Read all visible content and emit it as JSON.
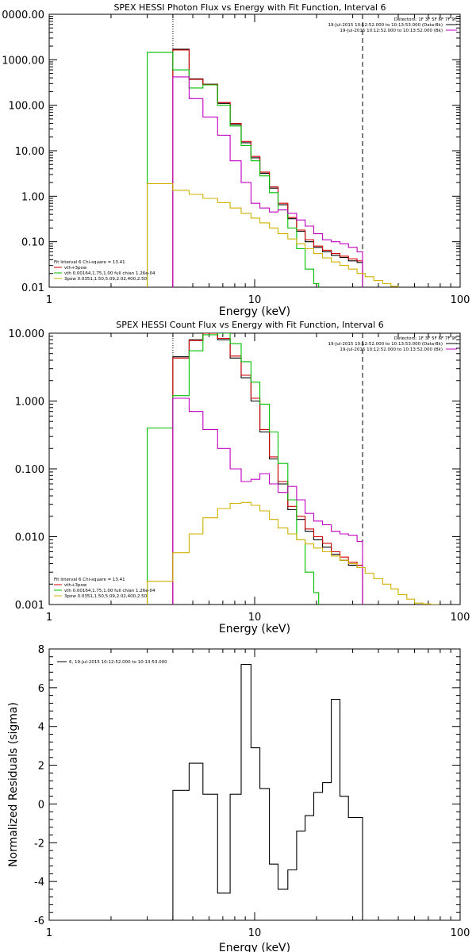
{
  "chart_data": [
    {
      "type": "line",
      "title": "SPEX HESSI Photon Flux vs Energy with Fit Function, Interval 6",
      "xlabel": "Energy (keV)",
      "ylabel": "",
      "xscale": "log",
      "yscale": "log",
      "xlim": [
        1,
        100
      ],
      "ylim": [
        0.01,
        10000
      ],
      "xtick_labels": [
        "1",
        "10",
        "100"
      ],
      "ytick_labels": [
        "0.01",
        "0.10",
        "1.00",
        "10.00",
        "100.00",
        "1000.00",
        "0000.00"
      ],
      "vlines": [
        {
          "x": 4.0,
          "style": "dotted"
        },
        {
          "x": 33.5,
          "style": "dashed"
        }
      ],
      "legend_right": {
        "header": "Detectors: 1F 3F 5F 6F 7F 9F",
        "lines": [
          {
            "text": "19-Jul-2015 10:12:52.000 to 10:13:53.000 (Data-Bk)",
            "color": "#000000"
          },
          {
            "text": "19-Jul-2015 10:12:52.000 to 10:13:52.000 (Bk)",
            "color": "#c000c0"
          }
        ]
      },
      "legend_left": {
        "header": "Fit Interval 6   Chi-square = 13.41",
        "lines": [
          {
            "text": "vth+3pow",
            "color": "#d00000"
          },
          {
            "text": "vth 0.00164,1.75,1.00  full chian 1.26e-04",
            "color": "#00c000"
          },
          {
            "text": "3pow 0.0351,1.50,5.09,2.02,400,2.50",
            "color": "#d0b000"
          }
        ]
      },
      "series": [
        {
          "color": "#000000",
          "edges": [
            4.0,
            4.8,
            5.6,
            6.6,
            7.6,
            8.6,
            9.6,
            10.6,
            11.8,
            13.0,
            14.5,
            16.0,
            17.6,
            19.4,
            21.4,
            23.6,
            26.0,
            28.6,
            31.5,
            33.5
          ],
          "values": [
            1700,
            380,
            290,
            110,
            38,
            15,
            7,
            3.2,
            1.5,
            0.65,
            0.32,
            0.17,
            0.1,
            0.075,
            0.06,
            0.05,
            0.045,
            0.038,
            0.035
          ]
        },
        {
          "color": "#d00000",
          "edges": [
            4.0,
            4.8,
            5.6,
            6.6,
            7.6,
            8.6,
            9.6,
            10.6,
            11.8,
            13.0,
            14.5,
            16.0,
            17.6,
            19.4,
            21.4,
            23.6,
            26.0,
            28.6,
            31.5,
            33.5
          ],
          "values": [
            1650,
            370,
            285,
            115,
            40,
            16,
            7.5,
            3.4,
            1.6,
            0.7,
            0.34,
            0.18,
            0.11,
            0.08,
            0.065,
            0.055,
            0.048,
            0.042,
            0.038
          ]
        },
        {
          "color": "#00c000",
          "edges": [
            3.0,
            4.0,
            4.8,
            5.6,
            6.6,
            7.6,
            8.6,
            9.6,
            10.6,
            11.8,
            13.0,
            14.5,
            16.0,
            17.6,
            19.4,
            20.5
          ],
          "values": [
            1450,
            600,
            240,
            280,
            100,
            35,
            13,
            6,
            2.8,
            1.2,
            0.5,
            0.2,
            0.07,
            0.025,
            0.012
          ]
        },
        {
          "color": "#c000c0",
          "edges": [
            4.0,
            4.8,
            5.6,
            6.6,
            7.6,
            8.6,
            9.6,
            10.6,
            11.8,
            13.0,
            14.5,
            16.0,
            17.6,
            19.4,
            21.4,
            23.6,
            26.0,
            28.6,
            31.5,
            33.5
          ],
          "values": [
            420,
            140,
            55,
            22,
            6,
            2,
            0.7,
            0.55,
            0.45,
            0.5,
            0.42,
            0.3,
            0.22,
            0.15,
            0.11,
            0.1,
            0.09,
            0.075,
            0.06
          ]
        },
        {
          "color": "#d0b000",
          "edges": [
            3.0,
            4.0,
            4.8,
            5.6,
            6.6,
            7.6,
            8.6,
            9.6,
            10.6,
            11.8,
            13.0,
            14.5,
            16.0,
            17.6,
            19.4,
            21.4,
            23.6,
            26.0,
            28.6,
            31.5,
            34.5,
            38.0,
            42.0,
            46.0,
            50.0
          ],
          "values": [
            1.9,
            1.35,
            1.1,
            0.9,
            0.72,
            0.55,
            0.42,
            0.33,
            0.26,
            0.2,
            0.15,
            0.115,
            0.09,
            0.07,
            0.055,
            0.044,
            0.036,
            0.03,
            0.025,
            0.02,
            0.017,
            0.014,
            0.012,
            0.0105
          ]
        }
      ]
    },
    {
      "type": "line",
      "title": "SPEX HESSI Count Flux vs Energy with Fit Function, Interval 6",
      "xlabel": "Energy (keV)",
      "ylabel": "",
      "xscale": "log",
      "yscale": "log",
      "xlim": [
        1,
        100
      ],
      "ylim": [
        0.001,
        10
      ],
      "xtick_labels": [
        "1",
        "10",
        "100"
      ],
      "ytick_labels": [
        "0.001",
        "0.010",
        "0.100",
        "1.000",
        "10.000"
      ],
      "vlines": [
        {
          "x": 4.0,
          "style": "dotted"
        },
        {
          "x": 33.5,
          "style": "dashed"
        }
      ],
      "legend_right": {
        "header": "Detectors: 1F 3F 5F 6F 7F 9F",
        "lines": [
          {
            "text": "19-Jul-2015 10:12:52.000 to 10:13:53.000 (Data-Bk)",
            "color": "#000000"
          },
          {
            "text": "19-Jul-2015 10:12:52.000 to 10:13:52.000 (Bk)",
            "color": "#c000c0"
          }
        ]
      },
      "legend_left": {
        "header": "Fit Interval 6   Chi-square = 13.41",
        "lines": [
          {
            "text": "vth+3pow",
            "color": "#d00000"
          },
          {
            "text": "vth 0.00164,1.75,1.00  full chian 1.26e-04",
            "color": "#00c000"
          },
          {
            "text": "3pow 0.0351,1.50,5.09,2.02,400,2.50",
            "color": "#d0b000"
          }
        ]
      },
      "series": [
        {
          "color": "#000000",
          "edges": [
            4.0,
            4.8,
            5.6,
            6.6,
            7.6,
            8.6,
            9.6,
            10.6,
            11.8,
            13.0,
            14.5,
            16.0,
            17.6,
            19.4,
            21.4,
            23.6,
            26.0,
            28.6,
            31.5,
            33.5
          ],
          "values": [
            4.5,
            8.0,
            10.0,
            8.0,
            4.3,
            2.2,
            1.0,
            0.35,
            0.14,
            0.06,
            0.025,
            0.018,
            0.012,
            0.009,
            0.007,
            0.0055,
            0.0045,
            0.0038,
            0.0035
          ]
        },
        {
          "color": "#d00000",
          "edges": [
            4.0,
            4.8,
            5.6,
            6.6,
            7.6,
            8.6,
            9.6,
            10.6,
            11.8,
            13.0,
            14.5,
            16.0,
            17.6,
            19.4,
            21.4,
            23.6,
            26.0,
            28.6,
            31.5,
            33.5
          ],
          "values": [
            4.3,
            7.8,
            10.2,
            8.4,
            4.6,
            2.4,
            1.1,
            0.38,
            0.15,
            0.065,
            0.028,
            0.02,
            0.013,
            0.01,
            0.008,
            0.006,
            0.005,
            0.0042,
            0.0038
          ]
        },
        {
          "color": "#00c000",
          "edges": [
            3.0,
            4.0,
            4.8,
            5.6,
            6.6,
            7.6,
            8.6,
            9.6,
            10.6,
            11.8,
            13.0,
            14.5,
            16.0,
            17.6,
            19.4,
            20.5
          ],
          "values": [
            0.4,
            1.2,
            5.5,
            9.5,
            10.5,
            7.0,
            3.8,
            1.9,
            0.9,
            0.35,
            0.12,
            0.035,
            0.009,
            0.003,
            0.0015
          ]
        },
        {
          "color": "#c000c0",
          "edges": [
            4.0,
            4.8,
            5.6,
            6.6,
            7.6,
            8.6,
            9.6,
            10.6,
            11.8,
            13.0,
            14.5,
            16.0,
            17.6,
            19.4,
            21.4,
            23.6,
            26.0,
            28.6,
            31.5,
            33.5
          ],
          "values": [
            1.1,
            0.7,
            0.38,
            0.2,
            0.1,
            0.065,
            0.07,
            0.085,
            0.06,
            0.045,
            0.055,
            0.035,
            0.022,
            0.017,
            0.015,
            0.012,
            0.011,
            0.0105,
            0.0085
          ]
        },
        {
          "color": "#d0b000",
          "edges": [
            3.0,
            4.0,
            4.8,
            5.6,
            6.6,
            7.6,
            8.6,
            9.6,
            10.6,
            11.8,
            13.0,
            14.5,
            16.0,
            17.6,
            19.4,
            21.4,
            23.6,
            26.0,
            28.6,
            31.5,
            34.5,
            38.0,
            42.0,
            46.0,
            50.0,
            55.0,
            60.0,
            66.0,
            72.0,
            79.0
          ],
          "values": [
            0.0022,
            0.0058,
            0.011,
            0.019,
            0.026,
            0.031,
            0.032,
            0.029,
            0.024,
            0.018,
            0.0135,
            0.011,
            0.009,
            0.0078,
            0.0068,
            0.006,
            0.0052,
            0.0045,
            0.004,
            0.0035,
            0.0029,
            0.0024,
            0.002,
            0.0017,
            0.0014,
            0.0012,
            0.00105,
            0.00102,
            0.001
          ]
        }
      ]
    },
    {
      "type": "line",
      "title": "",
      "xlabel": "Energy (keV)",
      "ylabel": "Normalized Residuals (sigma)",
      "xscale": "log",
      "yscale": "linear",
      "xlim": [
        1,
        100
      ],
      "ylim": [
        -6,
        8
      ],
      "xtick_labels": [
        "1",
        "10",
        "100"
      ],
      "ytick_labels": [
        "-6",
        "-4",
        "-2",
        "0",
        "2",
        "4",
        "6",
        "8"
      ],
      "legend_left": {
        "header": "",
        "lines": [
          {
            "text": "6, 19-Jul-2015 10:12:52.000 to 10:13:53.000",
            "color": "#000000"
          }
        ]
      },
      "series": [
        {
          "color": "#000000",
          "edges": [
            4.0,
            4.8,
            5.6,
            6.6,
            7.6,
            8.6,
            9.6,
            10.6,
            11.8,
            13.0,
            14.5,
            16.0,
            17.6,
            19.4,
            21.4,
            23.6,
            26.0,
            28.6,
            31.5,
            33.5
          ],
          "values": [
            0.7,
            2.1,
            0.5,
            -4.6,
            0.5,
            7.2,
            2.9,
            0.8,
            -3.1,
            -4.4,
            -3.4,
            -1.4,
            -0.6,
            0.6,
            1.1,
            5.4,
            0.4,
            -0.7,
            -0.7
          ]
        }
      ]
    }
  ]
}
